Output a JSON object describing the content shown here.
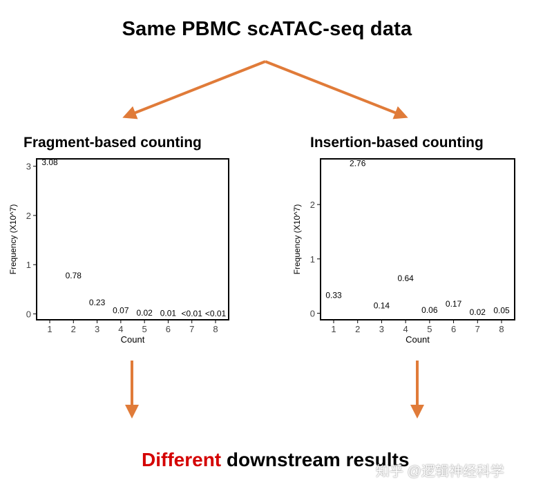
{
  "title": "Same PBMC scATAC-seq data",
  "colors": {
    "arrow": "#e07b39",
    "highlight": "#d40000"
  },
  "bottom": {
    "highlight": "Different",
    "rest": "downstream results"
  },
  "watermark": "知乎 @逻辑神经科学",
  "chart_data": [
    {
      "type": "bar",
      "title": "Fragment-based counting",
      "xlabel": "Count",
      "ylabel": "Frequency (X10^7)",
      "categories": [
        "1",
        "2",
        "3",
        "4",
        "5",
        "6",
        "7",
        "8"
      ],
      "values": [
        3.08,
        0.78,
        0.23,
        0.07,
        0.02,
        0.01,
        0.005,
        0.005
      ],
      "labels": [
        "3.08",
        "0.78",
        "0.23",
        "0.07",
        "0.02",
        "0.01",
        "<0.01",
        "<0.01"
      ],
      "yticks": [
        0,
        1,
        2,
        3
      ],
      "ylim": [
        -0.12,
        3.15
      ],
      "grid": false
    },
    {
      "type": "bar",
      "title": "Insertion-based counting",
      "xlabel": "Count",
      "ylabel": "Frequency (X10^7)",
      "categories": [
        "1",
        "2",
        "3",
        "4",
        "5",
        "6",
        "7",
        "8"
      ],
      "values": [
        0.33,
        2.76,
        0.14,
        0.64,
        0.06,
        0.17,
        0.02,
        0.05
      ],
      "labels": [
        "0.33",
        "2.76",
        "0.14",
        "0.64",
        "0.06",
        "0.17",
        "0.02",
        "0.05"
      ],
      "yticks": [
        0,
        1,
        2
      ],
      "ylim": [
        -0.12,
        2.84
      ],
      "grid": false
    }
  ]
}
